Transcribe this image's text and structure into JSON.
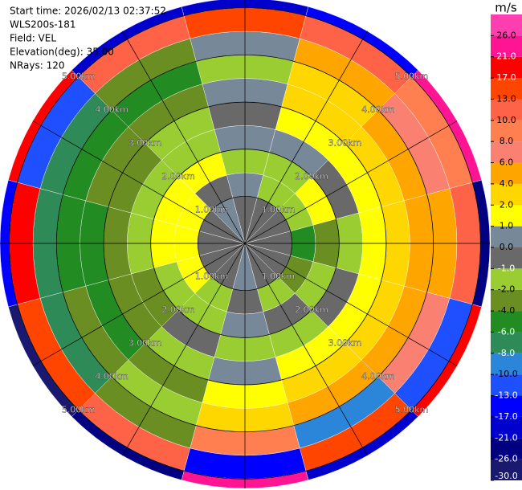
{
  "chart_data": {
    "type": "ppi",
    "info_lines": [
      "Start time: 2026/02/13 02:37:52",
      "WLS200s-181",
      "Field: VEL",
      "Elevation(deg): 35.00",
      "NRays: 120"
    ],
    "colorbar_title": "m/s",
    "clim": [
      -30,
      30
    ],
    "colorbar_ticks": [
      {
        "value": -30,
        "label": "-30.0"
      },
      {
        "value": -26,
        "label": "-26.0"
      },
      {
        "value": -21,
        "label": "-21.0"
      },
      {
        "value": -17,
        "label": "-17.0"
      },
      {
        "value": -13,
        "label": "-13.0"
      },
      {
        "value": -10,
        "label": "-10.0"
      },
      {
        "value": -8,
        "label": "-8.0"
      },
      {
        "value": -6,
        "label": "-6.0"
      },
      {
        "value": -4,
        "label": "-4.0"
      },
      {
        "value": -2,
        "label": "-2.0"
      },
      {
        "value": -1,
        "label": "-1.0"
      },
      {
        "value": 0,
        "label": "0.0"
      },
      {
        "value": 1,
        "label": "1.0"
      },
      {
        "value": 2,
        "label": "2.0"
      },
      {
        "value": 4,
        "label": "4.0"
      },
      {
        "value": 6,
        "label": "6.0"
      },
      {
        "value": 8,
        "label": "8.0"
      },
      {
        "value": 10,
        "label": "10.0"
      },
      {
        "value": 13,
        "label": "13.0"
      },
      {
        "value": 17,
        "label": "17.0"
      },
      {
        "value": 21,
        "label": "21.0"
      },
      {
        "value": 26,
        "label": "26.0"
      }
    ],
    "colors": [
      "#191970",
      "#000080",
      "#0000cd",
      "#0000ff",
      "#1e50ff",
      "#2b86d9",
      "#2e8b57",
      "#228b22",
      "#6b8e23",
      "#9acd32",
      "#696969",
      "#778899",
      "#ffff00",
      "#ffd700",
      "#ffa500",
      "#fa8072",
      "#ff7f50",
      "#ff6347",
      "#ff4500",
      "#ff0000",
      "#ff1493",
      "#ff3fb0"
    ],
    "rlim": [
      0,
      5.2
    ],
    "range_rings": [
      {
        "value": 1,
        "label": "1.00km"
      },
      {
        "value": 2,
        "label": "2.00km"
      },
      {
        "value": 3,
        "label": "3.00km"
      },
      {
        "value": 4,
        "label": "4.00km"
      },
      {
        "value": 5,
        "label": "5.00km"
      }
    ],
    "range_edges_km": [
      0,
      1,
      1.5,
      2,
      2.5,
      3,
      3.5,
      4,
      4.5,
      5,
      5.2
    ],
    "azimuth_edges_deg": [
      -15,
      15,
      45,
      75,
      105,
      135,
      165,
      195,
      225,
      255,
      285,
      315,
      345
    ],
    "field": [
      [
        -0.5,
        0.5,
        -1.5,
        0.5,
        -0.5,
        0.5,
        -1.5,
        0.5,
        15,
        -20
      ],
      [
        -0.5,
        -1.5,
        -1.5,
        0.5,
        1.5,
        3,
        3,
        5,
        12,
        -15
      ],
      [
        -0.5,
        -1.5,
        1.5,
        -0.5,
        1.5,
        3,
        5,
        7,
        9,
        23
      ],
      [
        -0.5,
        -5,
        -3,
        -1.5,
        1.5,
        3,
        5,
        5,
        11,
        -25
      ],
      [
        -0.5,
        -3,
        -1.5,
        -0.5,
        1.5,
        3,
        5,
        7,
        -12,
        18
      ],
      [
        -0.5,
        -1.5,
        -0.5,
        -1.5,
        1.5,
        3,
        5,
        -9,
        14,
        -19
      ],
      [
        0.5,
        -0.5,
        0.5,
        -1.5,
        0.5,
        1.5,
        3,
        9,
        -15,
        24
      ],
      [
        -0.5,
        -1.5,
        -1.5,
        -0.5,
        -1.5,
        -3,
        -1.5,
        -3,
        12,
        -22
      ],
      [
        -0.5,
        1.5,
        -1.5,
        -3,
        -3,
        -5,
        -3,
        -7,
        16,
        -28
      ],
      [
        -0.5,
        1.5,
        1.5,
        -1.5,
        -3,
        -5,
        -5,
        -7,
        19,
        -14
      ],
      [
        -0.5,
        1.5,
        1.5,
        -1.5,
        -3,
        -3,
        -5,
        -7,
        -11,
        20
      ],
      [
        0.5,
        -0.5,
        1.5,
        -1.5,
        -1.5,
        -3,
        -5,
        -3,
        10,
        -18
      ]
    ]
  }
}
